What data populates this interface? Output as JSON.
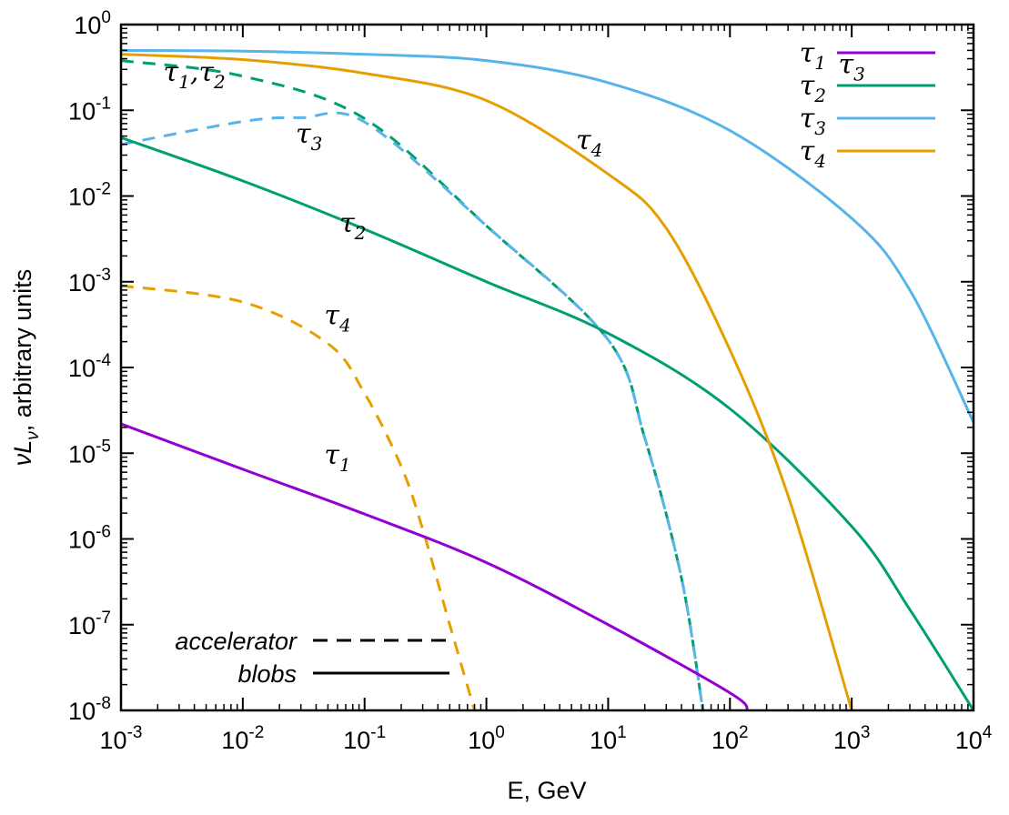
{
  "chart_data": {
    "type": "line",
    "title": "",
    "xlabel": "E, GeV",
    "ylabel": "νL",
    "ylabel_sub": "ν",
    "ylabel_rest": ", arbitrary units",
    "xscale": "log",
    "yscale": "log",
    "xlim": [
      0.001,
      10000
    ],
    "ylim": [
      1e-08,
      1
    ],
    "grid": false,
    "x_ticks": [
      {
        "value": 0.001,
        "base": "10",
        "exp": "-3"
      },
      {
        "value": 0.01,
        "base": "10",
        "exp": "-2"
      },
      {
        "value": 0.1,
        "base": "10",
        "exp": "-1"
      },
      {
        "value": 1,
        "base": "10",
        "exp": "0"
      },
      {
        "value": 10,
        "base": "10",
        "exp": "1"
      },
      {
        "value": 100,
        "base": "10",
        "exp": "2"
      },
      {
        "value": 1000,
        "base": "10",
        "exp": "3"
      },
      {
        "value": 10000,
        "base": "10",
        "exp": "4"
      }
    ],
    "y_ticks": [
      {
        "value": 1,
        "base": "10",
        "exp": "0"
      },
      {
        "value": 0.1,
        "base": "10",
        "exp": "-1"
      },
      {
        "value": 0.01,
        "base": "10",
        "exp": "-2"
      },
      {
        "value": 0.001,
        "base": "10",
        "exp": "-3"
      },
      {
        "value": 0.0001,
        "base": "10",
        "exp": "-4"
      },
      {
        "value": 1e-05,
        "base": "10",
        "exp": "-5"
      },
      {
        "value": 1e-06,
        "base": "10",
        "exp": "-6"
      },
      {
        "value": 1e-07,
        "base": "10",
        "exp": "-7"
      },
      {
        "value": 1e-08,
        "base": "10",
        "exp": "-8"
      }
    ],
    "legend_position": "top-right",
    "legend": [
      {
        "base": "τ",
        "sub": "1",
        "color": "#9400d3"
      },
      {
        "base": "τ",
        "sub": "2",
        "color": "#009e73"
      },
      {
        "base": "τ",
        "sub": "3",
        "color": "#56b4e9"
      },
      {
        "base": "τ",
        "sub": "4",
        "color": "#e69f00"
      }
    ],
    "style_legend_position": "bottom-left",
    "style_legend": [
      {
        "label": "accelerator",
        "dash": true
      },
      {
        "label": "blobs",
        "dash": false
      }
    ],
    "series": [
      {
        "name": "τ1 blobs",
        "color": "#9400d3",
        "dash": false,
        "x": [
          0.001,
          0.01,
          0.1,
          1,
          10,
          100,
          140
        ],
        "y": [
          2.2e-05,
          6.5e-06,
          1.95e-06,
          5.3e-07,
          1e-07,
          1.6e-08,
          1e-08
        ]
      },
      {
        "name": "τ2 blobs",
        "color": "#009e73",
        "dash": false,
        "x": [
          0.001,
          0.01,
          0.1,
          1,
          10,
          100,
          1000,
          3000,
          10000
        ],
        "y": [
          0.048,
          0.015,
          0.0041,
          0.001,
          0.00025,
          3.3e-05,
          1.4e-06,
          1.5e-07,
          1e-08
        ]
      },
      {
        "name": "τ3 blobs",
        "color": "#56b4e9",
        "dash": false,
        "x": [
          0.001,
          0.01,
          0.1,
          1,
          10,
          100,
          1000,
          3000,
          10000
        ],
        "y": [
          0.5,
          0.49,
          0.45,
          0.38,
          0.21,
          0.058,
          0.0055,
          0.0008,
          2.3e-05
        ]
      },
      {
        "name": "τ4 blobs",
        "color": "#e69f00",
        "dash": false,
        "x": [
          0.001,
          0.01,
          0.1,
          1,
          10,
          30,
          100,
          300,
          1000
        ],
        "y": [
          0.45,
          0.39,
          0.27,
          0.13,
          0.018,
          0.0042,
          0.00016,
          3.2e-06,
          1e-08
        ]
      },
      {
        "name": "τ1,τ2 accelerator",
        "color": "#009e73",
        "dash": true,
        "x": [
          0.001,
          0.01,
          0.1,
          1,
          10,
          20,
          40,
          60
        ],
        "y": [
          0.38,
          0.25,
          0.08,
          0.0045,
          0.00021,
          1.5e-05,
          3.5e-07,
          1e-08
        ]
      },
      {
        "name": "τ3 accelerator",
        "color": "#56b4e9",
        "dash": true,
        "x": [
          0.001,
          0.01,
          0.03,
          0.1,
          1,
          10,
          20,
          40,
          60
        ],
        "y": [
          0.04,
          0.074,
          0.082,
          0.073,
          0.0045,
          0.00021,
          1.5e-05,
          3.5e-07,
          1e-08
        ]
      },
      {
        "name": "τ4 accelerator",
        "color": "#e69f00",
        "dash": true,
        "x": [
          0.001,
          0.01,
          0.05,
          0.1,
          0.2,
          0.3,
          0.5,
          0.8
        ],
        "y": [
          0.0009,
          0.00058,
          0.00019,
          5e-05,
          7e-06,
          1.3e-06,
          1e-07,
          1e-08
        ]
      }
    ],
    "annotations": [
      {
        "base": "τ",
        "sub": "1",
        "sep": ",",
        "base2": "τ",
        "sub2": "2",
        "x": 0.004,
        "y": 0.22
      },
      {
        "base": "τ",
        "sub": "3",
        "x": 1000,
        "y": 0.27
      },
      {
        "base": "τ",
        "sub": "3",
        "x": 0.035,
        "y": 0.042
      },
      {
        "base": "τ",
        "sub": "4",
        "x": 7,
        "y": 0.035
      },
      {
        "base": "τ",
        "sub": "2",
        "x": 0.08,
        "y": 0.0038
      },
      {
        "base": "τ",
        "sub": "4",
        "x": 0.06,
        "y": 0.00032
      },
      {
        "base": "τ",
        "sub": "1",
        "x": 0.06,
        "y": 7.5e-06
      }
    ]
  }
}
